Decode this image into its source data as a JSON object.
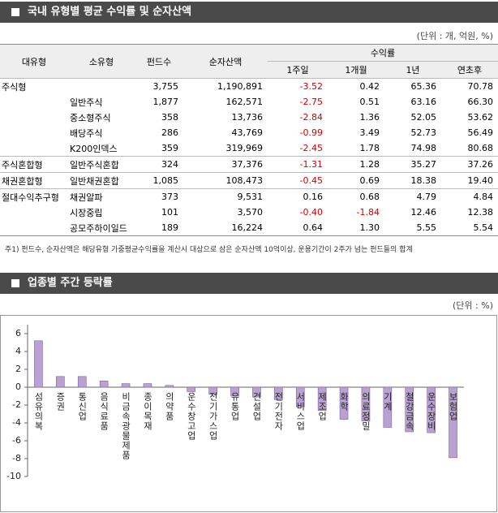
{
  "section1": {
    "title": "국내 유형별 평균 수익률 및 순자산액",
    "unit": "(단위 : 개, 억원, %)"
  },
  "table": {
    "header": {
      "major": "대유형",
      "minor": "소유형",
      "count": "펀드수",
      "assets": "순자산액",
      "returns": "수익률",
      "periods": [
        "1주일",
        "1개월",
        "1년",
        "연초후"
      ]
    },
    "rows": [
      [
        "주식형",
        null,
        "3,755",
        "1,190,891",
        "-3.52",
        "0.42",
        "65.36",
        "70.78"
      ],
      [
        null,
        "일반주식",
        "1,877",
        "162,571",
        "-2.75",
        "0.51",
        "63.16",
        "66.30"
      ],
      [
        null,
        "중소형주식",
        "358",
        "13,736",
        "-2.84",
        "1.36",
        "52.05",
        "53.62"
      ],
      [
        null,
        "배당주식",
        "286",
        "43,769",
        "-0.99",
        "3.49",
        "52.73",
        "56.49"
      ],
      [
        null,
        "K200인덱스",
        "359",
        "319,969",
        "-2.45",
        "1.78",
        "74.98",
        "80.68"
      ],
      [
        "주식혼합형",
        "일반주식혼합",
        "324",
        "37,376",
        "-1.31",
        "1.28",
        "35.27",
        "37.26"
      ],
      [
        "채권혼합형",
        "일반채권혼합",
        "1,085",
        "108,473",
        "-0.45",
        "0.69",
        "18.38",
        "19.40"
      ],
      [
        "절대수익추구형",
        "채권알파",
        "373",
        "9,531",
        "0.16",
        "0.68",
        "4.79",
        "4.84"
      ],
      [
        null,
        "시장중립",
        "101",
        "3,570",
        "-0.40",
        "-1.84",
        "12.46",
        "12.38"
      ],
      [
        null,
        "공모주하이일드",
        "189",
        "16,224",
        "0.64",
        "1.30",
        "5.55",
        "5.54"
      ]
    ],
    "footnote": "주1) 펀드수, 순자산액은 해당유형 가중평균수익률을 계산시 대상으로 삼은 순자산액 10억이상, 운용기간이 2주가 넘는 펀드들의 합계"
  },
  "section2": {
    "title": "업종별 주간 등락률",
    "unit": "(단위 : %)"
  },
  "chart_data": {
    "type": "bar",
    "color": "#b9a2d2",
    "categories": [
      "섬유의복",
      "증권",
      "통신업",
      "음식료품",
      "비금속광물제품",
      "종이목재",
      "의약품",
      "운수창고업",
      "전기가스업",
      "유통업",
      "건설업",
      "전기전자",
      "서비스업",
      "제조업",
      "화학",
      "의료정밀",
      "기계",
      "철강금속",
      "운수장비",
      "보험업"
    ],
    "values": [
      5.2,
      1.2,
      1.2,
      0.7,
      0.4,
      0.4,
      0.2,
      -0.5,
      -0.8,
      -1.0,
      -1.1,
      -1.4,
      -2.2,
      -2.6,
      -3.6,
      -3.8,
      -4.5,
      -5.0,
      -5.1,
      -7.9
    ],
    "ylim": [
      -10,
      7
    ],
    "yticks": [
      6,
      4,
      2,
      0,
      -2,
      -4,
      -6,
      -8,
      -10
    ]
  }
}
